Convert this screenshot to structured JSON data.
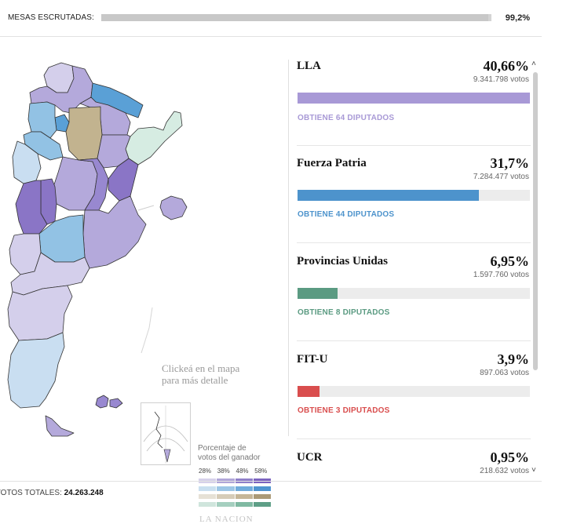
{
  "scrutiny": {
    "label": "MESAS ESCRUTADAS:",
    "value": "99,2%",
    "progress": 0.992
  },
  "map": {
    "hint_line1": "Clickeá en el mapa",
    "hint_line2": "para más detalle",
    "legend_title_line1": "Porcentaje de",
    "legend_title_line2": "votos del ganador",
    "legend_ticks": [
      "28%",
      "38%",
      "48%",
      "58%"
    ],
    "legend_colors": [
      [
        "#d6d1ea",
        "#b0a6d8",
        "#8f7fc9",
        "#7b63bf"
      ],
      [
        "#c9dff0",
        "#9cc6e6",
        "#70acdc",
        "#4f94d0"
      ],
      [
        "#e6e1d6",
        "#d6ccb8",
        "#c5b698",
        "#ab9a77"
      ],
      [
        "#cfe5dc",
        "#a5cfbf",
        "#7fb9a2",
        "#5e9f87"
      ]
    ],
    "brand": "LA NACION",
    "colors": {
      "lavender": "#d4cfeb",
      "light_purple": "#b4a9db",
      "mid_purple": "#9888d0",
      "dark_purple": "#8a75c6",
      "light_blue": "#c9def1",
      "mid_blue": "#92c2e4",
      "dark_blue": "#5aa0d6",
      "tan": "#c2b38f",
      "mint": "#d6ece2",
      "border": "#333333"
    }
  },
  "parties": [
    {
      "name": "LLA",
      "pct": "40,66%",
      "votes": "9.341.798 votos",
      "seats": "OBTIENE 64 DIPUTADOS",
      "share": 1.0,
      "color": "#a899d6"
    },
    {
      "name": "Fuerza Patria",
      "pct": "31,7%",
      "votes": "7.284.477 votos",
      "seats": "OBTIENE 44 DIPUTADOS",
      "share": 0.78,
      "color": "#4d93cc"
    },
    {
      "name": "Provincias Unidas",
      "pct": "6,95%",
      "votes": "1.597.760 votos",
      "seats": "OBTIENE 8 DIPUTADOS",
      "share": 0.171,
      "color": "#5b9b82"
    },
    {
      "name": "FIT-U",
      "pct": "3,9%",
      "votes": "897.063 votos",
      "seats": "OBTIENE 3 DIPUTADOS",
      "share": 0.096,
      "color": "#d94e4e"
    },
    {
      "name": "UCR",
      "pct": "0,95%",
      "votes": "218.632 votos",
      "seats": "",
      "share": 0.023,
      "color": "#c0392b"
    }
  ],
  "scroll": {
    "up_glyph": "˄",
    "down_glyph": "˅"
  },
  "totals": {
    "label": "VOTOS TOTALES:",
    "value": "24.263.248"
  }
}
